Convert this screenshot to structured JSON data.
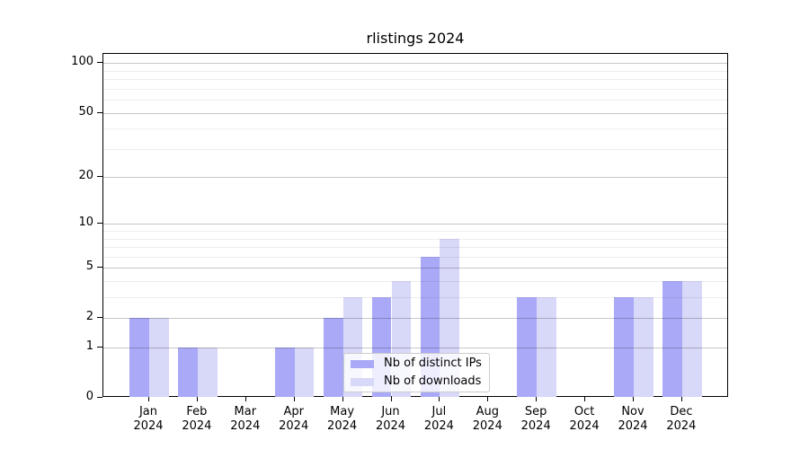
{
  "figure": {
    "background": "#ffffff"
  },
  "chart_data": {
    "type": "bar",
    "title": "rlistings 2024",
    "xlabel": "",
    "ylabel": "",
    "categories": [
      "Jan 2024",
      "Feb 2024",
      "Mar 2024",
      "Apr 2024",
      "May 2024",
      "Jun 2024",
      "Jul 2024",
      "Aug 2024",
      "Sep 2024",
      "Oct 2024",
      "Nov 2024",
      "Dec 2024"
    ],
    "series": [
      {
        "name": "Nb of distinct IPs",
        "color": "#a9a9f7",
        "values": [
          2,
          1,
          0,
          1,
          2,
          3,
          6,
          0,
          3,
          0,
          3,
          4
        ]
      },
      {
        "name": "Nb of downloads",
        "color": "#d8d8f8",
        "values": [
          2,
          1,
          0,
          1,
          3,
          4,
          8,
          0,
          3,
          0,
          3,
          4
        ]
      }
    ],
    "yscale": "log1p",
    "yticks": [
      0,
      1,
      2,
      5,
      10,
      20,
      50,
      100
    ],
    "yminor_ticks": [
      3,
      4,
      6,
      7,
      8,
      9,
      30,
      40,
      60,
      70,
      80,
      90
    ],
    "ylim": [
      0,
      114
    ],
    "grid": "on",
    "grid_over_bars": true,
    "legend": {
      "position": "lower center"
    },
    "colors": {
      "bar_ips": "#a9a9f7",
      "bar_downloads": "#d8d8f8",
      "grid_major": "rgba(0,0,0,0.22)",
      "grid_minor": "rgba(0,0,0,0.07)",
      "axis": "#000000",
      "text": "#000000"
    }
  }
}
